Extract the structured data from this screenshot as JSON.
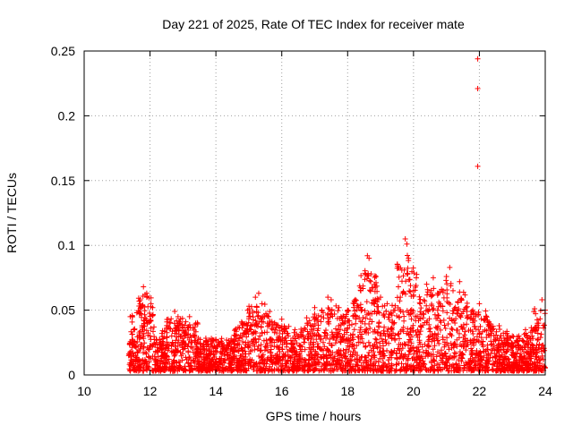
{
  "chart_data": {
    "type": "scatter",
    "title": "Day 221 of 2025, Rate Of TEC Index for receiver mate",
    "xlabel": "GPS time / hours",
    "ylabel": "ROTI / TECUs",
    "xlim": [
      10,
      24
    ],
    "ylim": [
      0,
      0.25
    ],
    "x_ticks": [
      10,
      12,
      14,
      16,
      18,
      20,
      22,
      24
    ],
    "y_ticks": [
      0,
      0.05,
      0.1,
      0.15,
      0.2,
      0.25
    ],
    "x_tick_labels": [
      "10",
      "12",
      "14",
      "16",
      "18",
      "20",
      "22",
      "24"
    ],
    "y_tick_labels": [
      "0",
      "0.05",
      "0.1",
      "0.15",
      "0.2",
      "0.25"
    ],
    "grid": true,
    "marker": "+",
    "color": "#ff0000",
    "series": [
      {
        "name": "ROTI",
        "x": [
          11.4,
          11.5,
          11.6,
          11.7,
          11.8,
          11.85,
          11.9,
          12.0,
          12.2,
          12.4,
          12.6,
          12.75,
          12.85,
          13.0,
          13.2,
          13.4,
          13.6,
          13.8,
          14.0,
          14.2,
          14.4,
          14.6,
          14.8,
          15.0,
          15.2,
          15.3,
          15.4,
          15.6,
          15.8,
          16.0,
          16.2,
          16.4,
          16.6,
          16.8,
          17.0,
          17.2,
          17.4,
          17.5,
          17.6,
          17.8,
          18.0,
          18.2,
          18.4,
          18.6,
          18.65,
          18.7,
          18.8,
          19.0,
          19.2,
          19.4,
          19.6,
          19.75,
          19.8,
          19.85,
          20.0,
          20.2,
          20.4,
          20.5,
          20.6,
          20.8,
          20.9,
          21.0,
          21.1,
          21.2,
          21.4,
          21.6,
          21.8,
          21.95,
          21.95,
          21.95,
          22.0,
          22.2,
          22.4,
          22.6,
          22.8,
          23.0,
          23.2,
          23.4,
          23.6,
          23.8,
          23.9,
          24.0
        ],
        "y": [
          0.045,
          0.035,
          0.048,
          0.055,
          0.068,
          0.062,
          0.063,
          0.03,
          0.025,
          0.028,
          0.04,
          0.049,
          0.045,
          0.025,
          0.045,
          0.022,
          0.022,
          0.02,
          0.018,
          0.02,
          0.025,
          0.03,
          0.04,
          0.045,
          0.06,
          0.063,
          0.055,
          0.045,
          0.035,
          0.043,
          0.03,
          0.035,
          0.033,
          0.04,
          0.052,
          0.045,
          0.06,
          0.058,
          0.047,
          0.045,
          0.05,
          0.055,
          0.065,
          0.092,
          0.09,
          0.072,
          0.055,
          0.06,
          0.055,
          0.05,
          0.06,
          0.105,
          0.101,
          0.09,
          0.065,
          0.055,
          0.07,
          0.062,
          0.075,
          0.055,
          0.065,
          0.076,
          0.083,
          0.065,
          0.072,
          0.052,
          0.05,
          0.244,
          0.221,
          0.161,
          0.055,
          0.045,
          0.035,
          0.038,
          0.032,
          0.03,
          0.03,
          0.035,
          0.03,
          0.04,
          0.058,
          0.05
        ]
      }
    ]
  }
}
